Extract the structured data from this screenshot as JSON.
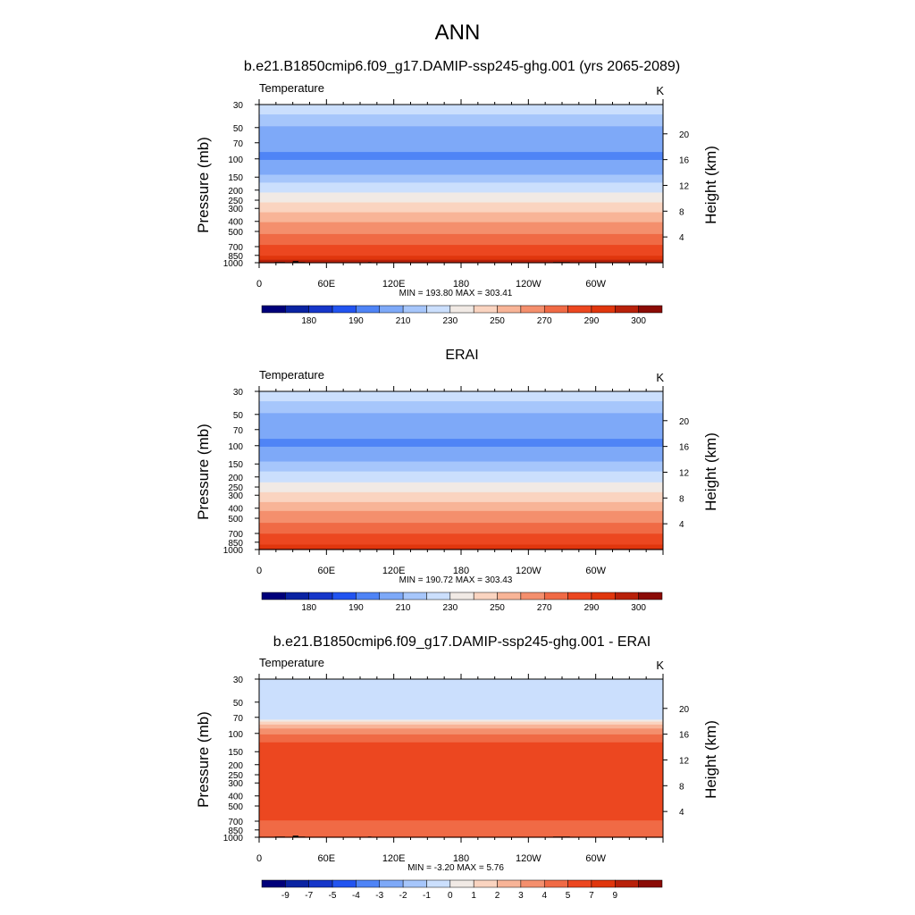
{
  "figure_title": "ANN",
  "colors": {
    "temp_levels": [
      "#00007a",
      "#0a23a2",
      "#1636c9",
      "#2254f0",
      "#4f84f6",
      "#7ea9f8",
      "#a6c6fb",
      "#cbdffd",
      "#f1eae5",
      "#fad4c0",
      "#f8b497",
      "#f48f6d",
      "#f06a45",
      "#ec4720",
      "#e0360d",
      "#b8210a",
      "#8b0b06"
    ],
    "diff_levels": [
      "#00007a",
      "#0a23a2",
      "#1636c9",
      "#2254f0",
      "#4f84f6",
      "#7ea9f8",
      "#a6c6fb",
      "#cbdffd",
      "#f1eae5",
      "#fad4c0",
      "#f8b497",
      "#f48f6d",
      "#f06a45",
      "#ec4720",
      "#e0360d",
      "#b8210a",
      "#8b0b06"
    ],
    "terrain": "#000000"
  },
  "chart_data": [
    {
      "type": "heatmap",
      "title": "b.e21.B1850cmip6.f09_g17.DAMIP-ssp245-ghg.001 (yrs 2065-2089)",
      "left_string": "Temperature",
      "right_string": "K",
      "ylabel": "Pressure (mb)",
      "ylabel_right": "Height (km)",
      "x_ticks": [
        "0",
        "60E",
        "120E",
        "180",
        "120W",
        "60W"
      ],
      "x_tick_values": [
        0,
        60,
        120,
        180,
        240,
        300
      ],
      "xlim": [
        0,
        360
      ],
      "y_ticks": [
        "30",
        "50",
        "70",
        "100",
        "150",
        "200",
        "250",
        "300",
        "400",
        "500",
        "700",
        "850",
        "1000"
      ],
      "y_tick_values": [
        30,
        50,
        70,
        100,
        150,
        200,
        250,
        300,
        400,
        500,
        700,
        850,
        1000
      ],
      "ylim": [
        30,
        1000
      ],
      "y_log": true,
      "right_ticks": [
        "20",
        "16",
        "12",
        "8",
        "4"
      ],
      "right_tick_values": [
        20,
        16,
        12,
        8,
        4
      ],
      "stats": "MIN = 193.80  MAX = 303.41",
      "colorbar_labels": [
        "180",
        "190",
        "210",
        "230",
        "250",
        "270",
        "290",
        "300"
      ],
      "levels": [
        175,
        180,
        185,
        190,
        200,
        210,
        220,
        230,
        240,
        250,
        260,
        270,
        280,
        290,
        295,
        300
      ],
      "profile": [
        [
          30,
          229
        ],
        [
          42,
          215
        ],
        [
          58,
          203
        ],
        [
          95,
          199
        ],
        [
          120,
          203
        ],
        [
          150,
          213
        ],
        [
          180,
          223
        ],
        [
          220,
          232
        ],
        [
          260,
          240
        ],
        [
          310,
          248
        ],
        [
          370,
          256
        ],
        [
          430,
          262
        ],
        [
          500,
          268
        ],
        [
          600,
          276
        ],
        [
          720,
          283
        ],
        [
          820,
          288
        ],
        [
          900,
          292
        ],
        [
          960,
          296
        ],
        [
          1000,
          298
        ]
      ],
      "mountains": [
        [
          14,
          23,
          985
        ],
        [
          30,
          35,
          965
        ],
        [
          35,
          41,
          985
        ],
        [
          97,
          100,
          985
        ],
        [
          262,
          277,
          985
        ]
      ]
    },
    {
      "type": "heatmap",
      "title": "ERAI",
      "left_string": "Temperature",
      "right_string": "K",
      "ylabel": "Pressure (mb)",
      "ylabel_right": "Height (km)",
      "x_ticks": [
        "0",
        "60E",
        "120E",
        "180",
        "120W",
        "60W"
      ],
      "x_tick_values": [
        0,
        60,
        120,
        180,
        240,
        300
      ],
      "xlim": [
        0,
        360
      ],
      "y_ticks": [
        "30",
        "50",
        "70",
        "100",
        "150",
        "200",
        "250",
        "300",
        "400",
        "500",
        "700",
        "850",
        "1000"
      ],
      "y_tick_values": [
        30,
        50,
        70,
        100,
        150,
        200,
        250,
        300,
        400,
        500,
        700,
        850,
        1000
      ],
      "ylim": [
        30,
        1000
      ],
      "y_log": true,
      "right_ticks": [
        "20",
        "16",
        "12",
        "8",
        "4"
      ],
      "right_tick_values": [
        20,
        16,
        12,
        8,
        4
      ],
      "stats": "MIN = 190.72  MAX = 303.43",
      "colorbar_labels": [
        "180",
        "190",
        "210",
        "230",
        "250",
        "270",
        "290",
        "300"
      ],
      "levels": [
        175,
        180,
        185,
        190,
        200,
        210,
        220,
        230,
        240,
        250,
        260,
        270,
        280,
        290,
        295,
        300
      ],
      "profile": [
        [
          30,
          229
        ],
        [
          42,
          215
        ],
        [
          58,
          203
        ],
        [
          95,
          199
        ],
        [
          120,
          203
        ],
        [
          150,
          213
        ],
        [
          180,
          221
        ],
        [
          220,
          229
        ],
        [
          260,
          236
        ],
        [
          310,
          245
        ],
        [
          370,
          253
        ],
        [
          430,
          260
        ],
        [
          500,
          266
        ],
        [
          600,
          274
        ],
        [
          720,
          281
        ],
        [
          820,
          286
        ],
        [
          900,
          290
        ],
        [
          960,
          294
        ],
        [
          1000,
          297
        ]
      ],
      "mountains": []
    },
    {
      "type": "heatmap",
      "title": "b.e21.B1850cmip6.f09_g17.DAMIP-ssp245-ghg.001 - ERAI",
      "left_string": "Temperature",
      "right_string": "K",
      "ylabel": "Pressure (mb)",
      "ylabel_right": "Height (km)",
      "x_ticks": [
        "0",
        "60E",
        "120E",
        "180",
        "120W",
        "60W"
      ],
      "x_tick_values": [
        0,
        60,
        120,
        180,
        240,
        300
      ],
      "xlim": [
        0,
        360
      ],
      "y_ticks": [
        "30",
        "50",
        "70",
        "100",
        "150",
        "200",
        "250",
        "300",
        "400",
        "500",
        "700",
        "850",
        "1000"
      ],
      "y_tick_values": [
        30,
        50,
        70,
        100,
        150,
        200,
        250,
        300,
        400,
        500,
        700,
        850,
        1000
      ],
      "ylim": [
        30,
        1000
      ],
      "y_log": true,
      "right_ticks": [
        "20",
        "16",
        "12",
        "8",
        "4"
      ],
      "right_tick_values": [
        20,
        16,
        12,
        8,
        4
      ],
      "stats": "MIN =  -3.20  MAX =   5.76",
      "colorbar_labels": [
        "-9",
        "-7",
        "-5",
        "-4",
        "-3",
        "-2",
        "-1",
        "0",
        "1",
        "2",
        "3",
        "4",
        "5",
        "7",
        "9"
      ],
      "levels": [
        -9,
        -8,
        -7,
        -6,
        -5,
        -4,
        -3,
        -2,
        -1,
        0,
        1,
        2,
        3,
        4,
        5,
        6
      ],
      "profile": [
        [
          30,
          -2.5
        ],
        [
          60,
          -2.5
        ],
        [
          72,
          -2.3
        ],
        [
          78,
          -0.5
        ],
        [
          85,
          0.5
        ],
        [
          95,
          1.6
        ],
        [
          110,
          2.5
        ],
        [
          130,
          3.3
        ],
        [
          150,
          3.6
        ],
        [
          200,
          3.7
        ],
        [
          300,
          3.7
        ],
        [
          400,
          3.6
        ],
        [
          500,
          3.5
        ],
        [
          650,
          3.2
        ],
        [
          750,
          2.6
        ],
        [
          850,
          2.1
        ],
        [
          950,
          2.7
        ],
        [
          1000,
          3.1
        ]
      ],
      "mountains": [
        [
          14,
          23,
          985
        ],
        [
          30,
          35,
          965
        ],
        [
          35,
          41,
          985
        ],
        [
          97,
          100,
          985
        ],
        [
          262,
          277,
          985
        ]
      ]
    }
  ]
}
